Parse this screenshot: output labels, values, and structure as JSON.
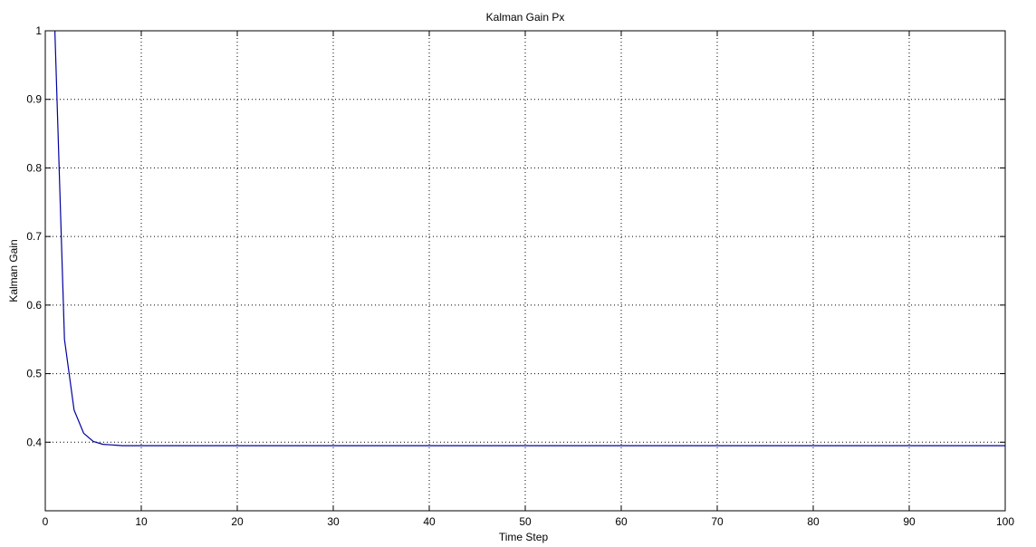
{
  "chart_data": {
    "type": "line",
    "title": "Kalman Gain Px",
    "xlabel": "Time Step",
    "ylabel": "Kalman Gain",
    "xlim": [
      0,
      100
    ],
    "ylim": [
      0.3,
      1
    ],
    "x_ticks": [
      0,
      10,
      20,
      30,
      40,
      50,
      60,
      70,
      80,
      90,
      100
    ],
    "y_ticks": [
      0.4,
      0.5,
      0.6,
      0.7,
      0.8,
      0.9,
      1
    ],
    "x_tick_labels": [
      "0",
      "10",
      "20",
      "30",
      "40",
      "50",
      "60",
      "70",
      "80",
      "90",
      "100"
    ],
    "y_tick_labels": [
      "0.4",
      "0.5",
      "0.6",
      "0.7",
      "0.8",
      "0.9",
      "1"
    ],
    "grid": true,
    "series": [
      {
        "color": "#0000a0",
        "x": [
          1,
          2,
          3,
          4,
          5,
          6,
          7,
          8,
          9,
          10,
          20,
          30,
          40,
          50,
          60,
          70,
          80,
          90,
          100
        ],
        "y": [
          1.0,
          0.55,
          0.447,
          0.413,
          0.401,
          0.397,
          0.396,
          0.395,
          0.395,
          0.395,
          0.395,
          0.395,
          0.395,
          0.395,
          0.395,
          0.395,
          0.395,
          0.395,
          0.395
        ]
      }
    ]
  }
}
